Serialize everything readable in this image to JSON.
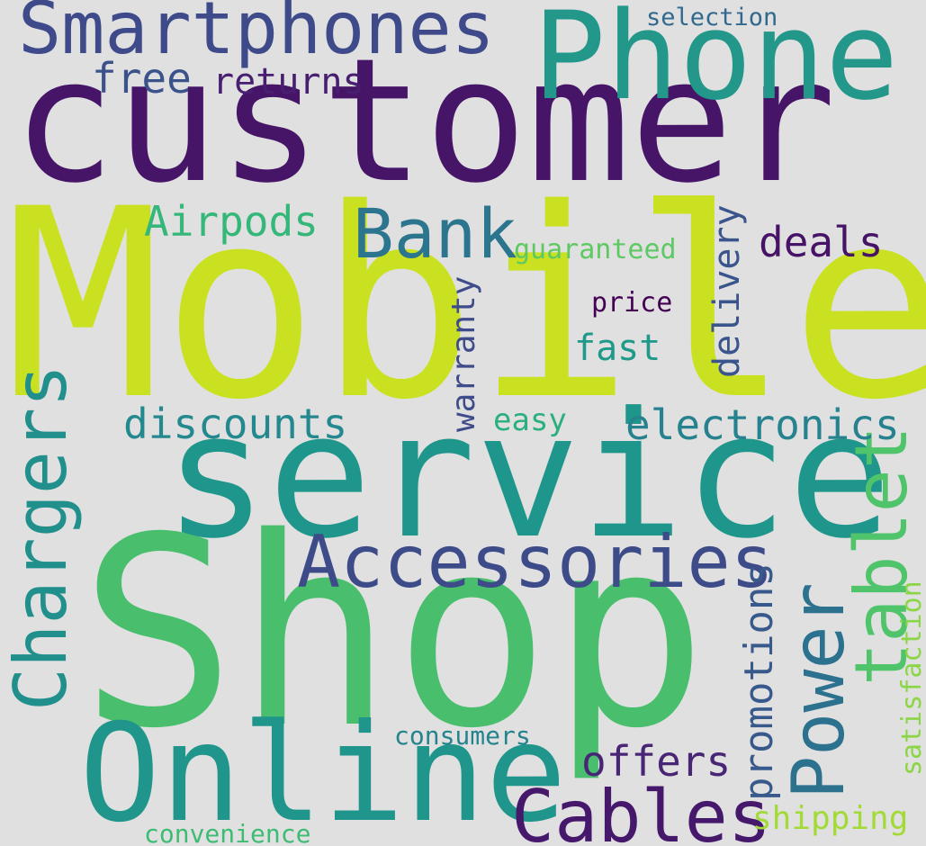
{
  "background": "#e0e0e0",
  "words": [
    {
      "text": "customer",
      "color": "#471568"
    },
    {
      "text": "Mobile",
      "color": "#c9e120"
    },
    {
      "text": "Shop",
      "color": "#49bf6e"
    },
    {
      "text": "service",
      "color": "#1f968b"
    },
    {
      "text": "Online",
      "color": "#1f958b"
    },
    {
      "text": "Phone",
      "color": "#22978a"
    },
    {
      "text": "Smartphones",
      "color": "#3e4a89"
    },
    {
      "text": "Accessories",
      "color": "#3d4b89"
    },
    {
      "text": "Cables",
      "color": "#46186b"
    },
    {
      "text": "Chargers",
      "color": "#21908d"
    },
    {
      "text": "tablet",
      "color": "#50c46a"
    },
    {
      "text": "Power",
      "color": "#2c728e"
    },
    {
      "text": "Bank",
      "color": "#2b758e"
    },
    {
      "text": "Airpods",
      "color": "#35b779"
    },
    {
      "text": "discounts",
      "color": "#23898e"
    },
    {
      "text": "electronics",
      "color": "#26828e"
    },
    {
      "text": "deals",
      "color": "#471366"
    },
    {
      "text": "promotions",
      "color": "#38598c"
    },
    {
      "text": "offers",
      "color": "#482575"
    },
    {
      "text": "free",
      "color": "#3b528b"
    },
    {
      "text": "returns",
      "color": "#481f70"
    },
    {
      "text": "delivery",
      "color": "#3a548c"
    },
    {
      "text": "warranty",
      "color": "#3e4c8a"
    },
    {
      "text": "fast",
      "color": "#1f9a8a"
    },
    {
      "text": "easy",
      "color": "#2ab07f"
    },
    {
      "text": "satisfaction",
      "color": "#8bd646"
    },
    {
      "text": "shipping",
      "color": "#a2da37"
    },
    {
      "text": "guaranteed",
      "color": "#5ec962"
    },
    {
      "text": "price",
      "color": "#440154"
    },
    {
      "text": "selection",
      "color": "#31688e"
    },
    {
      "text": "consumers",
      "color": "#25838e"
    },
    {
      "text": "convenience",
      "color": "#3dbc74"
    }
  ]
}
